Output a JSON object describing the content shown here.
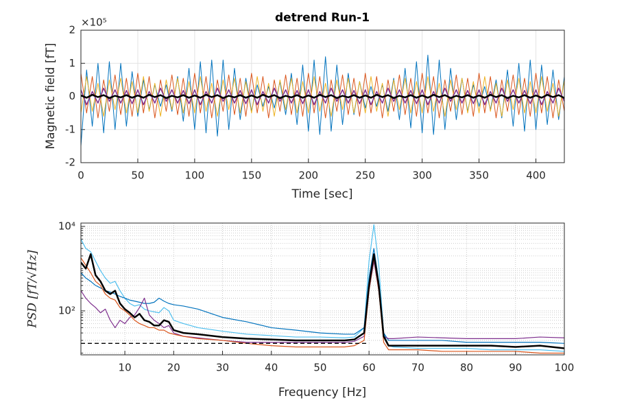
{
  "chart_data": [
    {
      "type": "line",
      "title": "detrend Run-1",
      "x_label": "Time [sec]",
      "y_label": "Magnetic field [fT]",
      "y_multiplier": "×10⁵",
      "x": [
        0,
        5,
        10,
        15,
        20,
        25,
        30,
        35,
        40,
        45,
        50,
        55,
        60,
        65,
        70,
        75,
        80,
        85,
        90,
        95,
        100,
        105,
        110,
        115,
        120,
        125,
        130,
        135,
        140,
        145,
        150,
        155,
        160,
        165,
        170,
        175,
        180,
        185,
        190,
        195,
        200,
        205,
        210,
        215,
        220,
        225,
        230,
        235,
        240,
        245,
        250,
        255,
        260,
        265,
        270,
        275,
        280,
        285,
        290,
        295,
        300,
        305,
        310,
        315,
        320,
        325,
        330,
        335,
        340,
        345,
        350,
        355,
        360,
        365,
        370,
        375,
        380,
        385,
        390,
        395,
        400,
        405,
        410,
        415,
        420,
        425
      ],
      "xlim": [
        0,
        425
      ],
      "ylim": [
        -2,
        2
      ],
      "xticks": [
        0,
        50,
        100,
        150,
        200,
        250,
        300,
        350,
        400
      ],
      "yticks": [
        -2,
        -1,
        0,
        1,
        2
      ],
      "grid": true,
      "series": [
        {
          "color": "#0072BD",
          "width": 1,
          "values": [
            -1.5,
            0.8,
            -0.9,
            1.0,
            -1.1,
            1.05,
            -1.0,
            1.0,
            -0.9,
            0.75,
            -0.6,
            0.5,
            -0.4,
            0.35,
            -0.3,
            0.35,
            -0.45,
            0.6,
            -0.75,
            0.85,
            -1.0,
            1.05,
            -1.1,
            1.1,
            -1.2,
            1.1,
            -1.0,
            0.85,
            -0.7,
            0.55,
            -0.45,
            0.35,
            -0.3,
            0.3,
            -0.35,
            0.45,
            -0.55,
            0.7,
            -0.85,
            0.95,
            -1.05,
            1.1,
            -1.15,
            1.2,
            -1.05,
            0.95,
            -0.85,
            0.7,
            -0.55,
            0.45,
            -0.35,
            0.3,
            -0.3,
            0.35,
            -0.45,
            0.55,
            -0.7,
            0.85,
            -0.95,
            1.05,
            -1.1,
            1.25,
            -1.15,
            1.1,
            -1.0,
            0.85,
            -0.7,
            0.55,
            -0.45,
            0.35,
            -0.3,
            0.3,
            -0.4,
            0.5,
            -0.65,
            0.8,
            -0.9,
            1.0,
            -1.05,
            1.1,
            -1.0,
            0.95,
            -0.85,
            0.8,
            -0.7,
            0.6
          ]
        },
        {
          "color": "#D95319",
          "width": 1,
          "values": [
            0.7,
            -0.5,
            0.6,
            -0.65,
            0.5,
            -0.45,
            0.65,
            -0.55,
            0.55,
            -0.6,
            0.7,
            -0.5,
            0.6,
            -0.65,
            0.5,
            -0.45,
            0.65,
            -0.55,
            0.55,
            -0.6,
            0.7,
            -0.5,
            0.6,
            -0.65,
            0.5,
            -0.45,
            0.65,
            -0.55,
            0.55,
            -0.6,
            0.7,
            -0.5,
            0.6,
            -0.65,
            0.5,
            -0.45,
            0.65,
            -0.55,
            0.55,
            -0.6,
            0.7,
            -0.5,
            0.6,
            -0.65,
            0.5,
            -0.45,
            0.65,
            -0.55,
            0.55,
            -0.6,
            0.7,
            -0.5,
            0.6,
            -0.65,
            0.5,
            -0.45,
            0.65,
            -0.55,
            0.55,
            -0.6,
            0.7,
            -0.5,
            0.6,
            -0.65,
            0.5,
            -0.45,
            0.65,
            -0.55,
            0.55,
            -0.6,
            0.7,
            -0.5,
            0.6,
            -0.65,
            0.5,
            -0.45,
            0.65,
            -0.55,
            0.55,
            -0.6,
            0.7,
            -0.5,
            0.6,
            -0.65,
            0.5,
            -0.45
          ]
        },
        {
          "color": "#EDB120",
          "width": 1,
          "values": [
            -0.5,
            0.6,
            -0.45,
            0.4,
            -0.6,
            0.5,
            -0.4,
            0.55,
            -0.5,
            0.45,
            -0.5,
            0.6,
            -0.45,
            0.4,
            -0.6,
            0.5,
            -0.4,
            0.55,
            -0.5,
            0.45,
            -0.5,
            0.6,
            -0.45,
            0.4,
            -0.6,
            0.5,
            -0.4,
            0.55,
            -0.5,
            0.45,
            -0.5,
            0.6,
            -0.45,
            0.4,
            -0.6,
            0.5,
            -0.4,
            0.55,
            -0.5,
            0.45,
            -0.5,
            0.6,
            -0.45,
            0.4,
            -0.6,
            0.5,
            -0.4,
            0.55,
            -0.5,
            0.45,
            -0.5,
            0.6,
            -0.45,
            0.4,
            -0.6,
            0.5,
            -0.4,
            0.55,
            -0.5,
            0.45,
            -0.5,
            0.6,
            -0.45,
            0.4,
            -0.6,
            0.5,
            -0.4,
            0.55,
            -0.5,
            0.45,
            -0.5,
            0.6,
            -0.45,
            0.4,
            -0.6,
            0.5,
            -0.4,
            0.55,
            -0.5,
            0.45,
            -0.5,
            0.6,
            -0.45,
            0.4,
            -0.6,
            0.5
          ]
        },
        {
          "color": "#7E2F8E",
          "width": 1.5,
          "values": [
            0.2,
            -0.25,
            0.15,
            -0.2,
            0.25,
            -0.15,
            0.2,
            -0.2,
            0.18,
            -0.22,
            0.2,
            -0.25,
            0.15,
            -0.2,
            0.25,
            -0.15,
            0.2,
            -0.2,
            0.18,
            -0.22,
            0.2,
            -0.25,
            0.15,
            -0.2,
            0.25,
            -0.15,
            0.2,
            -0.2,
            0.18,
            -0.22,
            0.2,
            -0.25,
            0.15,
            -0.2,
            0.25,
            -0.15,
            0.2,
            -0.2,
            0.18,
            -0.22,
            0.2,
            -0.25,
            0.15,
            -0.2,
            0.25,
            -0.15,
            0.2,
            -0.2,
            0.18,
            -0.22,
            0.2,
            -0.25,
            0.15,
            -0.2,
            0.25,
            -0.15,
            0.2,
            -0.2,
            0.18,
            -0.22,
            0.2,
            -0.25,
            0.15,
            -0.2,
            0.25,
            -0.15,
            0.2,
            -0.2,
            0.18,
            -0.22,
            0.2,
            -0.25,
            0.15,
            -0.2,
            0.25,
            -0.15,
            0.2,
            -0.2,
            0.18,
            -0.22,
            0.2,
            -0.25,
            0.15,
            -0.2,
            0.25,
            -0.15
          ]
        },
        {
          "color": "#000000",
          "width": 2.5,
          "values": [
            0.03,
            -0.04,
            0.05,
            -0.02,
            0.04,
            -0.05,
            0.02,
            -0.03,
            0.04,
            -0.04,
            0.03,
            -0.04,
            0.05,
            -0.02,
            0.04,
            -0.05,
            0.02,
            -0.03,
            0.04,
            -0.04,
            0.03,
            -0.04,
            0.05,
            -0.02,
            0.04,
            -0.05,
            0.02,
            -0.03,
            0.04,
            -0.04,
            0.03,
            -0.04,
            0.05,
            -0.02,
            0.04,
            -0.05,
            0.02,
            -0.03,
            0.04,
            -0.04,
            0.03,
            -0.04,
            0.05,
            -0.02,
            0.04,
            -0.05,
            0.02,
            -0.03,
            0.04,
            -0.04,
            0.03,
            -0.04,
            0.05,
            -0.02,
            0.04,
            -0.05,
            0.02,
            -0.03,
            0.04,
            -0.04,
            0.03,
            -0.04,
            0.05,
            -0.02,
            0.04,
            -0.05,
            0.02,
            -0.03,
            0.04,
            -0.04,
            0.03,
            -0.04,
            0.05,
            -0.02,
            0.04,
            -0.05,
            0.02,
            -0.03,
            0.04,
            -0.04,
            0.03,
            -0.04,
            0.05,
            -0.02,
            0.04,
            -0.05
          ]
        }
      ]
    },
    {
      "type": "line",
      "x_label": "Frequency [Hz]",
      "y_label": "PSD [fT/√Hz]",
      "yscale": "log",
      "x": [
        1,
        2,
        3,
        4,
        5,
        6,
        7,
        8,
        9,
        10,
        11,
        12,
        13,
        14,
        15,
        16,
        17,
        18,
        19,
        20,
        22,
        25,
        30,
        35,
        40,
        45,
        50,
        55,
        57,
        59,
        60,
        61,
        62,
        63,
        64,
        65,
        70,
        75,
        80,
        85,
        90,
        95,
        100
      ],
      "xlim": [
        1,
        100
      ],
      "ylim": [
        9.1,
        12000
      ],
      "xticks": [
        10,
        20,
        30,
        40,
        50,
        60,
        70,
        80,
        90,
        100
      ],
      "yticks": [
        {
          "value": 100,
          "label": "10²"
        },
        {
          "value": 10000,
          "label": "10⁴"
        }
      ],
      "yminorticks": [
        10,
        20,
        30,
        40,
        50,
        60,
        70,
        80,
        90,
        200,
        300,
        400,
        500,
        600,
        700,
        800,
        900,
        1000,
        2000,
        3000,
        4000,
        5000,
        6000,
        7000,
        8000,
        9000
      ],
      "grid": true,
      "reference_line": {
        "y": 17,
        "x": [
          1,
          60
        ],
        "color": "#000000"
      },
      "series": [
        {
          "color": "#4DBEEE",
          "width": 1.2,
          "values": [
            5000,
            3000,
            2500,
            1500,
            900,
            600,
            450,
            500,
            300,
            200,
            150,
            130,
            140,
            110,
            100,
            95,
            90,
            120,
            100,
            60,
            50,
            40,
            33,
            28,
            26,
            24,
            24,
            23,
            24,
            40,
            1500,
            11000,
            1200,
            30,
            15,
            14,
            13,
            13,
            13,
            12,
            12,
            12,
            11
          ]
        },
        {
          "color": "#0072BD",
          "width": 1.2,
          "values": [
            800,
            600,
            500,
            400,
            350,
            300,
            280,
            250,
            220,
            200,
            180,
            170,
            160,
            150,
            150,
            160,
            200,
            170,
            150,
            140,
            130,
            110,
            70,
            55,
            40,
            35,
            30,
            28,
            28,
            40,
            600,
            3000,
            500,
            30,
            20,
            20,
            20,
            20,
            18,
            18,
            18,
            18,
            17
          ]
        },
        {
          "color": "#7E2F8E",
          "width": 1.2,
          "values": [
            300,
            200,
            150,
            120,
            90,
            110,
            60,
            40,
            60,
            50,
            70,
            80,
            120,
            200,
            80,
            60,
            50,
            40,
            45,
            30,
            25,
            23,
            20,
            18,
            18,
            18,
            18,
            18,
            19,
            25,
            300,
            1500,
            300,
            25,
            22,
            22,
            24,
            23,
            22,
            22,
            22,
            24,
            23
          ]
        },
        {
          "color": "#D95319",
          "width": 1.2,
          "values": [
            1800,
            1200,
            800,
            500,
            400,
            250,
            200,
            180,
            120,
            100,
            80,
            60,
            50,
            45,
            40,
            40,
            35,
            35,
            30,
            28,
            25,
            22,
            20,
            17,
            15,
            14,
            14,
            14,
            15,
            20,
            300,
            1800,
            300,
            18,
            12,
            12,
            12,
            11,
            11,
            11,
            11,
            10,
            10
          ]
        },
        {
          "color": "#000000",
          "width": 2.5,
          "values": [
            1400,
            1000,
            2200,
            700,
            500,
            300,
            250,
            300,
            150,
            110,
            90,
            70,
            85,
            60,
            55,
            45,
            45,
            60,
            55,
            35,
            30,
            28,
            24,
            22,
            21,
            20,
            20,
            20,
            21,
            30,
            400,
            2200,
            400,
            25,
            15,
            15,
            15,
            15,
            15,
            15,
            14,
            15,
            13
          ]
        }
      ]
    }
  ]
}
